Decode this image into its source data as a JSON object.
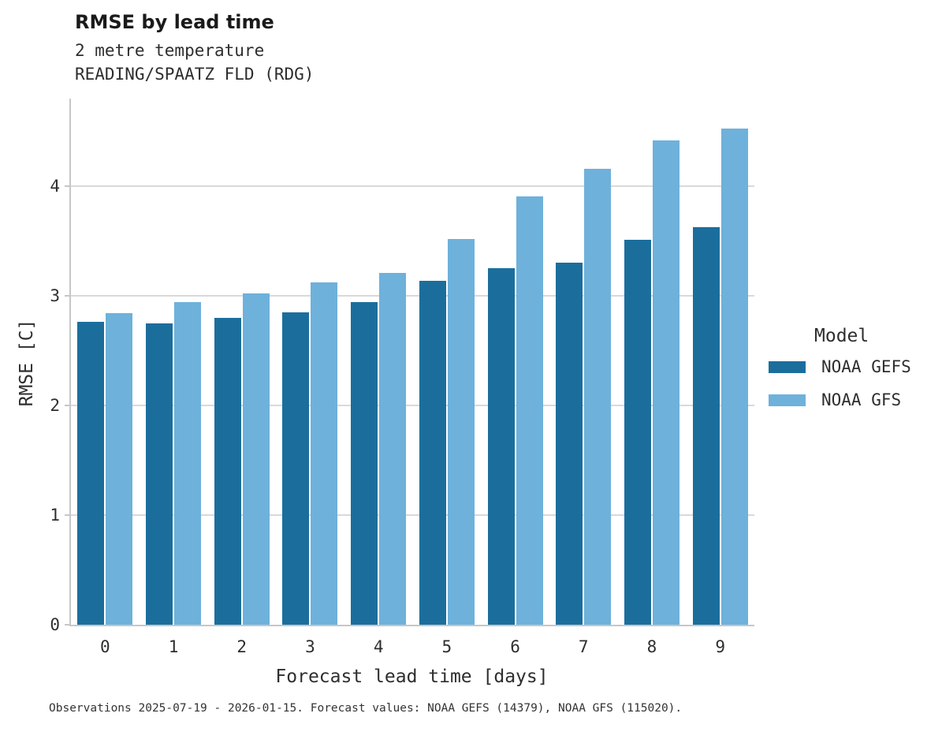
{
  "title": "RMSE by lead time",
  "subtitles": [
    "2 metre temperature",
    "READING/SPAATZ FLD (RDG)"
  ],
  "chart_data": {
    "type": "bar",
    "title": "RMSE by lead time",
    "subtitle": [
      "2 metre temperature",
      "READING/SPAATZ FLD (RDG)"
    ],
    "categories": [
      "0",
      "1",
      "2",
      "3",
      "4",
      "5",
      "6",
      "7",
      "8",
      "9"
    ],
    "series": [
      {
        "name": "NOAA GEFS",
        "color": "#1b6e9c",
        "values": [
          2.76,
          2.75,
          2.8,
          2.85,
          2.94,
          3.14,
          3.25,
          3.3,
          3.51,
          3.63
        ]
      },
      {
        "name": "NOAA GFS",
        "color": "#6eb1db",
        "values": [
          2.84,
          2.94,
          3.02,
          3.12,
          3.21,
          3.52,
          3.91,
          4.16,
          4.42,
          4.53
        ]
      }
    ],
    "xlabel": "Forecast lead time [days]",
    "ylabel": "RMSE [C]",
    "ylim": [
      0,
      4.8
    ],
    "yticks": [
      0,
      1,
      2,
      3,
      4
    ],
    "grid": "horizontal",
    "legend_title": "Model",
    "legend_position": "right"
  },
  "legend": {
    "title": "Model",
    "items": [
      {
        "label": "NOAA GEFS",
        "color": "#1b6e9c"
      },
      {
        "label": "NOAA GFS",
        "color": "#6eb1db"
      }
    ]
  },
  "footer": "Observations 2025-07-19 - 2026-01-15. Forecast values: NOAA GEFS (14379), NOAA GFS (115020).",
  "style": {
    "gridline_color": "#d9d9d9",
    "spine_color": "#c7c7c7",
    "background": "#ffffff"
  }
}
